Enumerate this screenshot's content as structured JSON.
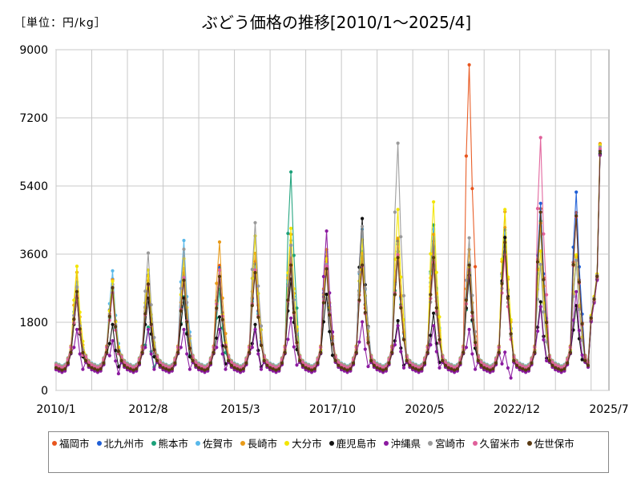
{
  "unit_label": "［単位：円/kg］",
  "chart_data": {
    "type": "line",
    "title": "ぶどう価格の推移[2010/1～2025/4]",
    "ylim": [
      0,
      9000
    ],
    "yticks": [
      "0",
      "1800",
      "3600",
      "5400",
      "7200",
      "9000"
    ],
    "xlim": [
      "2010/1",
      "2025/7"
    ],
    "xticks": [
      "2010/1",
      "2012/8",
      "2015/3",
      "2017/10",
      "2020/5",
      "2022/12",
      "2025/7"
    ],
    "grid": "vertical and horizontal",
    "legend_position": "bottom",
    "series": [
      {
        "name": "福岡市",
        "color": "#E8561E",
        "y_offset": 0,
        "peaks": [
          2600,
          2800,
          2900,
          3100,
          3300,
          3400,
          3500,
          3400,
          3500,
          4000,
          3800,
          8600,
          4300,
          4800,
          4700,
          6500
        ]
      },
      {
        "name": "北九州市",
        "color": "#1F5FD6",
        "y_offset": 40,
        "peaks": [
          2700,
          2900,
          3000,
          3000,
          3200,
          3300,
          3800,
          3500,
          3600,
          3900,
          3900,
          3300,
          4200,
          4900,
          5200,
          6300
        ]
      },
      {
        "name": "熊本市",
        "color": "#1BA17A",
        "y_offset": -30,
        "peaks": [
          2500,
          2700,
          1700,
          2500,
          2700,
          3300,
          5800,
          3500,
          3700,
          3700,
          4400,
          3000,
          4000,
          4500,
          3600,
          6300
        ]
      },
      {
        "name": "佐賀市",
        "color": "#58B8EA",
        "y_offset": 60,
        "peaks": [
          2800,
          3100,
          2700,
          3900,
          3100,
          3200,
          3900,
          3600,
          4200,
          3800,
          4200,
          3300,
          4100,
          4200,
          3400,
          6400
        ]
      },
      {
        "name": "長崎市",
        "color": "#E89A18",
        "y_offset": 20,
        "peaks": [
          3100,
          2900,
          3000,
          3200,
          3900,
          3600,
          4100,
          3700,
          3600,
          4000,
          4100,
          3700,
          4700,
          4400,
          3500,
          6500
        ]
      },
      {
        "name": "大分市",
        "color": "#F2E500",
        "y_offset": 80,
        "peaks": [
          3200,
          2800,
          3100,
          3400,
          3100,
          4000,
          4200,
          3400,
          3900,
          4700,
          4900,
          3200,
          4700,
          3600,
          3500,
          6400
        ]
      },
      {
        "name": "鹿児島市",
        "color": "#111111",
        "y_offset": -60,
        "peaks": [
          2500,
          1800,
          2500,
          2500,
          2000,
          1800,
          3000,
          2600,
          4600,
          1900,
          2100,
          3100,
          4100,
          2400,
          2300,
          6300
        ]
      },
      {
        "name": "沖縄県",
        "color": "#8B1AA0",
        "y_offset": -90,
        "peaks": [
          1700,
          1400,
          1700,
          1700,
          1700,
          1700,
          2000,
          4300,
          1900,
          1800,
          1800,
          1700,
          1100,
          2300,
          2700,
          6300
        ]
      },
      {
        "name": "宮崎市",
        "color": "#9A9A9A",
        "y_offset": 30,
        "peaks": [
          2700,
          2700,
          3600,
          3700,
          2900,
          4400,
          3800,
          3300,
          4300,
          6500,
          3200,
          4000,
          3700,
          3300,
          3400,
          6400
        ]
      },
      {
        "name": "久留米市",
        "color": "#E0609A",
        "y_offset": -20,
        "peaks": [
          2500,
          2600,
          2800,
          3000,
          3200,
          3200,
          3300,
          3300,
          3300,
          3600,
          3400,
          3200,
          3600,
          6700,
          4600,
          6400
        ]
      },
      {
        "name": "佐世保市",
        "color": "#5A3A12",
        "y_offset": 10,
        "peaks": [
          2600,
          2700,
          2800,
          2900,
          3000,
          3100,
          3300,
          3200,
          3300,
          3500,
          3500,
          3300,
          3900,
          4700,
          4600,
          6300
        ]
      }
    ],
    "seasonal_shape_note": "Each series repeats yearly: low ~600-900 in winter/spring, rising in summer to the listed yearly peak around month 7-8, then falling."
  }
}
